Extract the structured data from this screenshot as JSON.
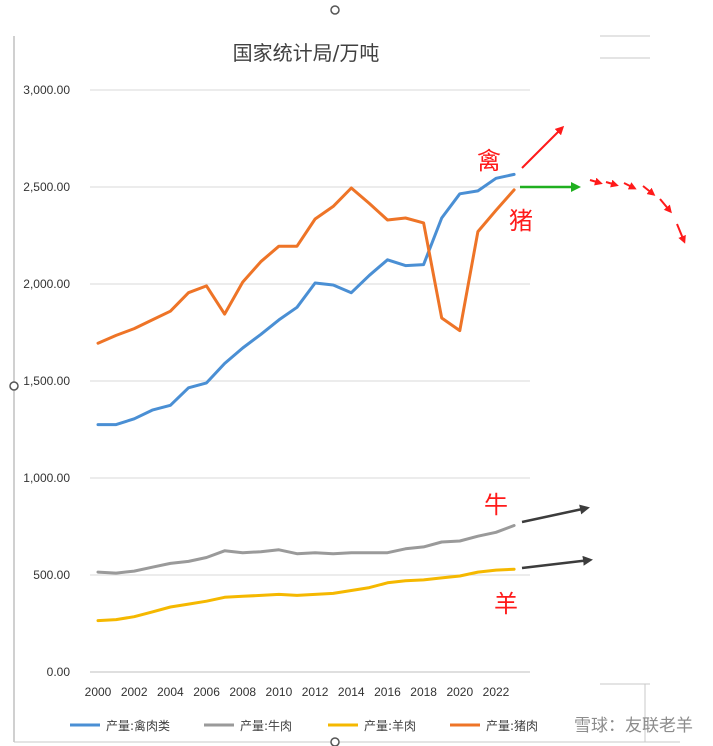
{
  "chart_data": {
    "type": "line",
    "title": "国家统计局/万吨",
    "xlabel": "",
    "ylabel": "",
    "x": [
      2000,
      2001,
      2002,
      2003,
      2004,
      2005,
      2006,
      2007,
      2008,
      2009,
      2010,
      2011,
      2012,
      2013,
      2014,
      2015,
      2016,
      2017,
      2018,
      2019,
      2020,
      2021,
      2022,
      2023
    ],
    "x_tick_labels": [
      "2000",
      "2002",
      "2004",
      "2006",
      "2008",
      "2010",
      "2012",
      "2014",
      "2016",
      "2018",
      "2020",
      "2022"
    ],
    "ylim": [
      0,
      3000
    ],
    "y_ticks": [
      0,
      500,
      1000,
      1500,
      2000,
      2500,
      3000
    ],
    "y_tick_labels": [
      "0.00",
      "500.00",
      "1,000.00",
      "1,500.00",
      "2,000.00",
      "2,500.00",
      "3,000.00"
    ],
    "grid": true,
    "legend_position": "bottom",
    "series": [
      {
        "name": "产量:禽肉类",
        "color": "#4a8fd4",
        "values": [
          1275,
          1275,
          1305,
          1350,
          1375,
          1465,
          1490,
          1590,
          1670,
          1740,
          1815,
          1880,
          2005,
          1995,
          1955,
          2045,
          2125,
          2095,
          2100,
          2340,
          2465,
          2480,
          2545,
          2565
        ]
      },
      {
        "name": "产量:牛肉",
        "color": "#9a9a9a",
        "values": [
          515,
          510,
          520,
          540,
          560,
          570,
          590,
          625,
          615,
          620,
          630,
          610,
          615,
          610,
          615,
          615,
          615,
          635,
          645,
          670,
          675,
          700,
          720,
          755
        ]
      },
      {
        "name": "产量:羊肉",
        "color": "#f5b800",
        "values": [
          265,
          270,
          285,
          310,
          335,
          350,
          365,
          385,
          390,
          395,
          400,
          395,
          400,
          405,
          420,
          435,
          460,
          470,
          475,
          485,
          495,
          515,
          525,
          530
        ]
      },
      {
        "name": "产量:猪肉",
        "color": "#ee7427",
        "values": [
          1695,
          1735,
          1770,
          1815,
          1860,
          1955,
          1990,
          1845,
          2010,
          2115,
          2195,
          2195,
          2335,
          2400,
          2495,
          2415,
          2330,
          2340,
          2315,
          1825,
          1760,
          2270,
          2380,
          2485
        ]
      }
    ],
    "annotations": [
      "禽",
      "猪",
      "牛",
      "羊"
    ]
  },
  "annotation_colors": {
    "up_arrow": "#ff1a1a",
    "flat_arrow": "#1faf1f",
    "gray_arrow": "#3c3c3c"
  },
  "watermark": "雪球：友联老羊"
}
